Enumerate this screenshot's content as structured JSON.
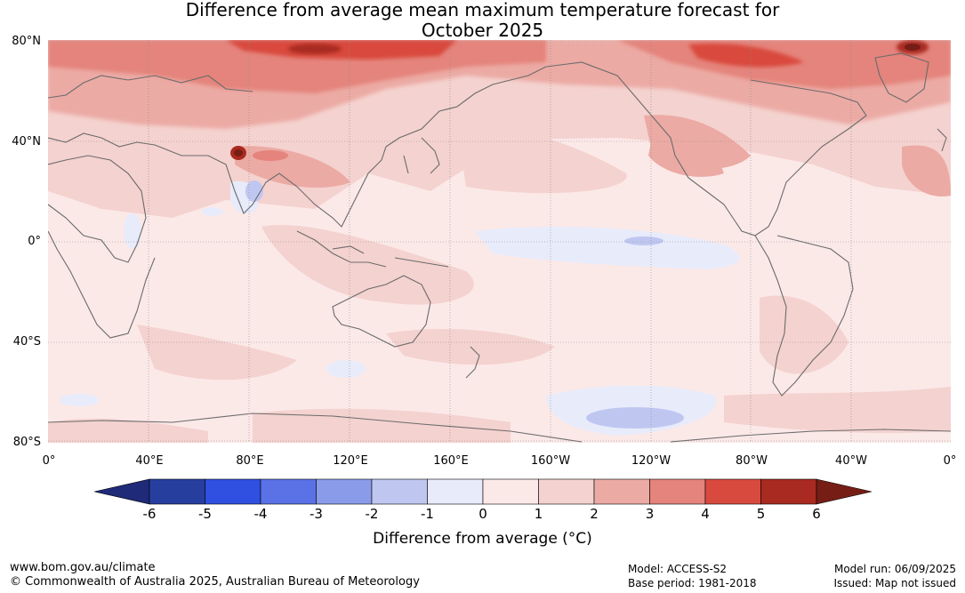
{
  "title_line1": "Difference from average mean maximum temperature forecast for",
  "title_line2": "October 2025",
  "lat_labels": [
    "80°N",
    "40°N",
    "0°",
    "40°S",
    "80°S"
  ],
  "lon_labels": [
    "0°",
    "40°E",
    "80°E",
    "120°E",
    "160°E",
    "160°W",
    "120°W",
    "80°W",
    "40°W",
    "0°"
  ],
  "colorbar": {
    "ticks": [
      "-6",
      "-5",
      "-4",
      "-3",
      "-2",
      "-1",
      "0",
      "1",
      "2",
      "3",
      "4",
      "5",
      "6"
    ],
    "colors": [
      "#263f9f",
      "#2f50e0",
      "#5a72e6",
      "#8a9ce9",
      "#bfc7f1",
      "#e8ebfa",
      "#fbe9e8",
      "#f4d2cf",
      "#ecaaa4",
      "#e4847c",
      "#d94a3e",
      "#a92a20"
    ],
    "under_color": "#1f2a78",
    "over_color": "#761d16",
    "label": "Difference from average (°C)"
  },
  "footer": {
    "url": "www.bom.gov.au/climate",
    "copyright": "© Commonwealth of Australia 2025, Australian Bureau of Meteorology",
    "model": "Model: ACCESS-S2",
    "base_period": "Base period: 1981-2018",
    "model_run": "Model run: 06/09/2025",
    "issued": "Issued: Map not issued"
  }
}
